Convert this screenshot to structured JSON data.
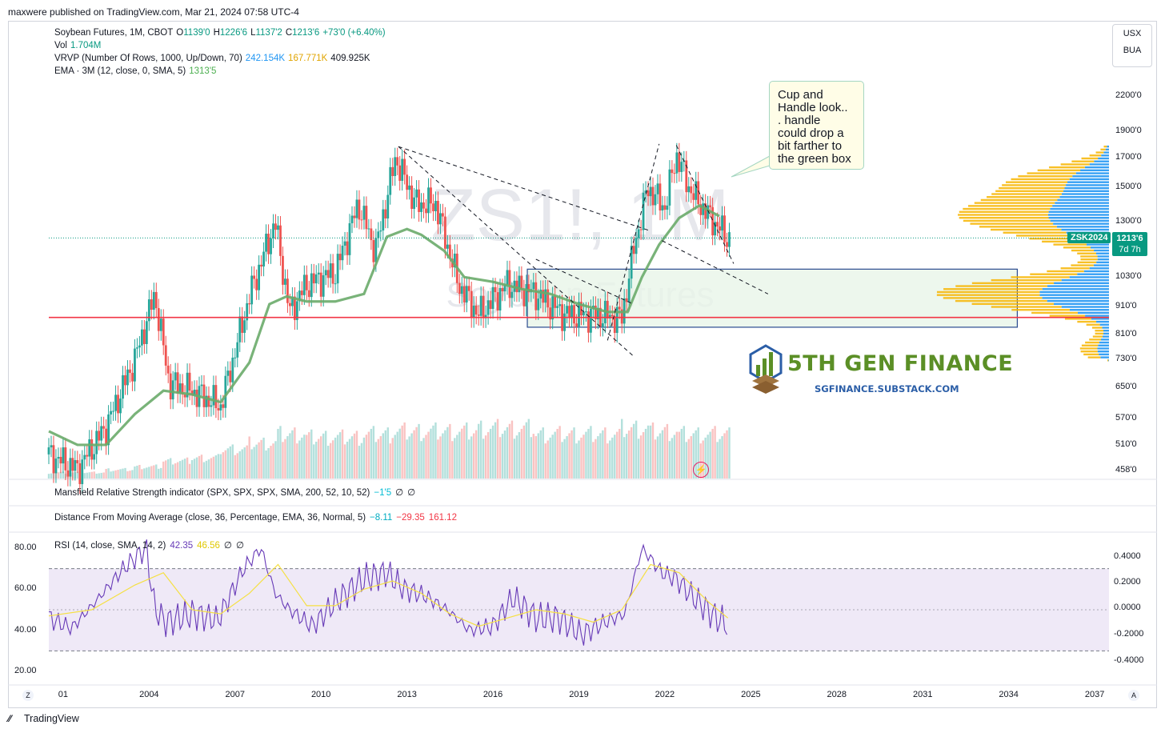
{
  "header": {
    "published": "maxwere published on TradingView.com, Mar 21, 2024 07:58 UTC-4"
  },
  "legend": {
    "title": "Soybean Futures, 1M, CBOT",
    "ohlc": {
      "o_label": "O",
      "o": "1139'0",
      "h_label": "H",
      "h": "1226'6",
      "l_label": "L",
      "l": "1137'2",
      "c_label": "C",
      "c": "1213'6",
      "change": "+73'0 (+6.40%)"
    },
    "vol": {
      "label": "Vol",
      "value": "1.704M"
    },
    "vrvp": {
      "label": "VRVP (Number Of Rows, 1000, Up/Down, 70)",
      "up": "242.154K",
      "down": "167.771K",
      "total": "409.925K"
    },
    "ema": {
      "label": "EMA · 3M (12, close, 0, SMA, 5)",
      "value": "1313'5"
    }
  },
  "currency_buttons": [
    "USX",
    "BUA"
  ],
  "watermark": {
    "symbol": "ZS1!, 1M",
    "name": "Soybean Futures"
  },
  "callout": {
    "lines": [
      "Cup and",
      "Handle look..",
      ". handle",
      "could drop a",
      "bit farther to",
      "the green box"
    ]
  },
  "brand": {
    "name": "5TH GEN FINANCE",
    "url": "SGFINANCE.SUBSTACK.COM"
  },
  "price_axis": {
    "ticks": [
      "2200'0",
      "1900'0",
      "1700'0",
      "1500'0",
      "1300'0",
      "1030'0",
      "910'0",
      "810'0",
      "730'0",
      "650'0",
      "570'0",
      "510'0",
      "458'0"
    ]
  },
  "price_tags": {
    "symbol": "ZSK2024",
    "price": "1213'6",
    "countdown": "7d 7h"
  },
  "indicators": {
    "mansfield": {
      "label": "Mansfield Relative Strength indicator (SPX, SPX, SPX, SMA, 200, 52, 10, 52)",
      "value": "−1'5",
      "a": "∅",
      "b": "∅"
    },
    "dfma": {
      "label": "Distance From Moving Average (close, 36, Percentage, EMA, 36, Normal, 5)",
      "v1": "−8.11",
      "v2": "−29.35",
      "v3": "161.12"
    },
    "rsi": {
      "label": "RSI (14, close, SMA, 14, 2)",
      "v1": "42.35",
      "v2": "46.56",
      "a": "∅",
      "b": "∅"
    }
  },
  "rsi_axis_left": [
    "80.00",
    "60.00",
    "40.00",
    "20.00"
  ],
  "rsi_axis_right": [
    "0.4000",
    "0.2000",
    "0.0000",
    "-0.2000",
    "-0.4000"
  ],
  "time_axis": [
    "01",
    "2004",
    "2007",
    "2010",
    "2013",
    "2016",
    "2019",
    "2022",
    "2025",
    "2028",
    "2031",
    "2034",
    "2037"
  ],
  "time_axis_buttons": {
    "left": "Z",
    "right": "A"
  },
  "footer": {
    "brand": "TradingView"
  },
  "colors": {
    "up": "#26a69a",
    "down": "#ef5350",
    "ema": "#6aab6a",
    "support": "#f23645",
    "box_fill": "#e8f5e9",
    "box_border": "#2a4a8f",
    "vp_up": "#2196f3",
    "vp_down": "#f7b500",
    "rsi": "#673ab7",
    "rsi_ma": "#f5e042",
    "rsi_band": "#ede7f6"
  },
  "chart_data": {
    "type": "candlestick",
    "title": "Soybean Futures, 1M, CBOT",
    "xlim": [
      2000.5,
      2037.5
    ],
    "ylim_log": [
      458,
      2200
    ],
    "yscale": "log",
    "support_level": 870,
    "green_box": {
      "x": [
        2017.2,
        2034.3
      ],
      "y": [
        835,
        1065
      ]
    },
    "ema_series": {
      "name": "EMA · 3M",
      "x": [
        2000.5,
        2001.5,
        2002.5,
        2003.5,
        2004.5,
        2005.5,
        2006.5,
        2007.5,
        2008.2,
        2008.8,
        2009.5,
        2010.5,
        2011.5,
        2012.3,
        2013.0,
        2013.5,
        2014.3,
        2015.0,
        2016.0,
        2017.0,
        2018.0,
        2019.0,
        2020.0,
        2020.7,
        2021.2,
        2021.8,
        2022.5,
        2023.2,
        2023.9
      ],
      "y": [
        540,
        510,
        510,
        580,
        640,
        630,
        610,
        720,
        920,
        950,
        930,
        930,
        960,
        1220,
        1260,
        1230,
        1150,
        1030,
        1010,
        980,
        960,
        920,
        890,
        890,
        1030,
        1180,
        1320,
        1390,
        1330
      ]
    },
    "candles_monthly_close_approx": {
      "x": [
        2000.5,
        2001.5,
        2002.5,
        2003.5,
        2004.2,
        2004.7,
        2005.5,
        2006.5,
        2007.5,
        2008.4,
        2008.9,
        2009.5,
        2010.5,
        2011.3,
        2011.9,
        2012.6,
        2013.3,
        2014.0,
        2014.8,
        2015.5,
        2016.5,
        2017.5,
        2018.5,
        2019.5,
        2020.5,
        2020.9,
        2021.4,
        2022.0,
        2022.4,
        2022.9,
        2023.5,
        2024.2
      ],
      "y": [
        490,
        460,
        550,
        730,
        960,
        660,
        640,
        600,
        950,
        1300,
        890,
        1000,
        1050,
        1400,
        1150,
        1700,
        1400,
        1400,
        1000,
        880,
        1000,
        960,
        880,
        880,
        870,
        1150,
        1500,
        1380,
        1720,
        1480,
        1340,
        1213
      ]
    },
    "volume_relative": [
      0.1,
      0.1,
      0.15,
      0.2,
      0.3,
      0.35,
      0.5,
      0.6,
      0.75,
      0.7,
      0.7,
      0.75,
      0.8,
      0.8,
      0.8,
      0.85,
      0.85,
      0.75,
      0.75,
      0.75,
      0.85,
      0.8,
      0.75,
      0.75,
      0.85,
      0.85,
      0.8,
      0.85,
      0.85,
      0.9,
      0.8
    ],
    "trendlines": [
      {
        "from": [
          2012.7,
          1780
        ],
        "to": [
          2021.5,
          1250
        ]
      },
      {
        "from": [
          2012.7,
          1780
        ],
        "to": [
          2020.9,
          740
        ]
      },
      {
        "from": [
          2020.0,
          790
        ],
        "to": [
          2021.8,
          1800
        ]
      },
      {
        "from": [
          2022.4,
          1790
        ],
        "to": [
          2024.4,
          1090
        ]
      },
      {
        "from": [
          2021.9,
          1200
        ],
        "to": [
          2025.6,
          960
        ]
      },
      {
        "from": [
          2017.5,
          1110
        ],
        "to": [
          2020.9,
          920
        ]
      }
    ],
    "rsi_series": {
      "name": "RSI",
      "x": [
        2000.5,
        2001.3,
        2002.2,
        2003.1,
        2003.9,
        2004.2,
        2004.6,
        2005.5,
        2006.4,
        2007.3,
        2007.9,
        2008.4,
        2008.9,
        2009.7,
        2010.6,
        2011.5,
        2012.3,
        2012.9,
        2013.6,
        2014.4,
        2015.2,
        2016.0,
        2016.7,
        2017.5,
        2018.3,
        2019.1,
        2019.9,
        2020.6,
        2021.2,
        2021.9,
        2022.4,
        2023.0,
        2023.8,
        2024.2
      ],
      "y": [
        46,
        41,
        55,
        70,
        80,
        50,
        44,
        48,
        45,
        70,
        80,
        58,
        50,
        42,
        55,
        65,
        68,
        60,
        57,
        50,
        40,
        42,
        56,
        46,
        46,
        38,
        44,
        48,
        80,
        68,
        65,
        56,
        46,
        43
      ]
    },
    "rsi_ma_series": {
      "name": "RSI MA",
      "x": [
        2000.5,
        2002.0,
        2003.5,
        2004.5,
        2005.5,
        2006.5,
        2007.5,
        2008.5,
        2009.5,
        2010.5,
        2011.5,
        2012.5,
        2013.5,
        2014.5,
        2015.5,
        2016.5,
        2017.5,
        2018.5,
        2019.5,
        2020.5,
        2021.5,
        2022.5,
        2023.5,
        2024.2
      ],
      "y": [
        47,
        50,
        62,
        68,
        50,
        48,
        58,
        72,
        52,
        52,
        60,
        64,
        58,
        48,
        42,
        46,
        50,
        48,
        44,
        50,
        72,
        68,
        54,
        46
      ]
    },
    "rsi_ylim": [
      15,
      85
    ],
    "rsi_bands": [
      30,
      70
    ]
  }
}
